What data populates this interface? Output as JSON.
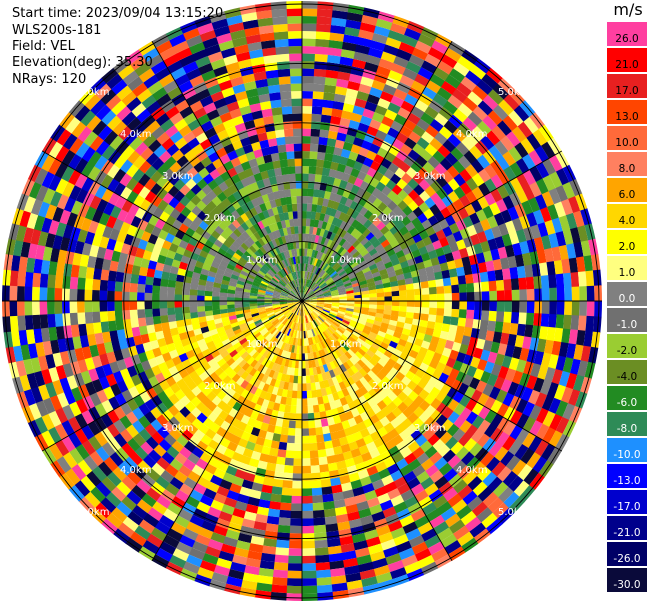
{
  "info": {
    "start_time": "Start time: 2023/09/04 13:15:20",
    "instrument": "WLS200s-181",
    "field": "Field: VEL",
    "elevation": "Elevation(deg): 35.30",
    "nrays": "NRays: 120"
  },
  "chart_data": {
    "type": "heatmap",
    "projection": "polar-ppi",
    "field": "VEL",
    "units": "m/s",
    "n_rays": 120,
    "range_rings_km": [
      1.0,
      2.0,
      3.0,
      4.0,
      5.0
    ],
    "ring_labels": [
      "1.0km",
      "2.0km",
      "3.0km",
      "4.0km",
      "5.0km"
    ],
    "radial_lines_deg": [
      0,
      30,
      60,
      90,
      120,
      150,
      180,
      210,
      240,
      270,
      300,
      330
    ],
    "colorbar": {
      "title": "m/s",
      "ticks": [
        "26.0",
        "21.0",
        "17.0",
        "13.0",
        "10.0",
        "8.0",
        "6.0",
        "4.0",
        "2.0",
        "1.0",
        "0.0",
        "-1.0",
        "-2.0",
        "-4.0",
        "-6.0",
        "-8.0",
        "-10.0",
        "-13.0",
        "-17.0",
        "-21.0",
        "-26.0",
        "-30.0"
      ],
      "colors": [
        "#ff3fa0",
        "#ff0000",
        "#e82020",
        "#ff4500",
        "#ff6a3a",
        "#ff8060",
        "#ffa500",
        "#ffd700",
        "#ffff00",
        "#ffff80",
        "#808080",
        "#707070",
        "#9acd32",
        "#6b8e23",
        "#228b22",
        "#2e8b57",
        "#1e90ff",
        "#0000ff",
        "#0000cd",
        "#00008b",
        "#000066",
        "#0a0a3a"
      ],
      "label_colors": [
        "#000000",
        "#000000",
        "#000000",
        "#000000",
        "#000000",
        "#000000",
        "#000000",
        "#000000",
        "#000000",
        "#000000",
        "#ffffff",
        "#ffffff",
        "#000000",
        "#000000",
        "#ffffff",
        "#ffffff",
        "#ffffff",
        "#ffffff",
        "#ffffff",
        "#ffffff",
        "#ffffff",
        "#ffffff"
      ]
    }
  }
}
